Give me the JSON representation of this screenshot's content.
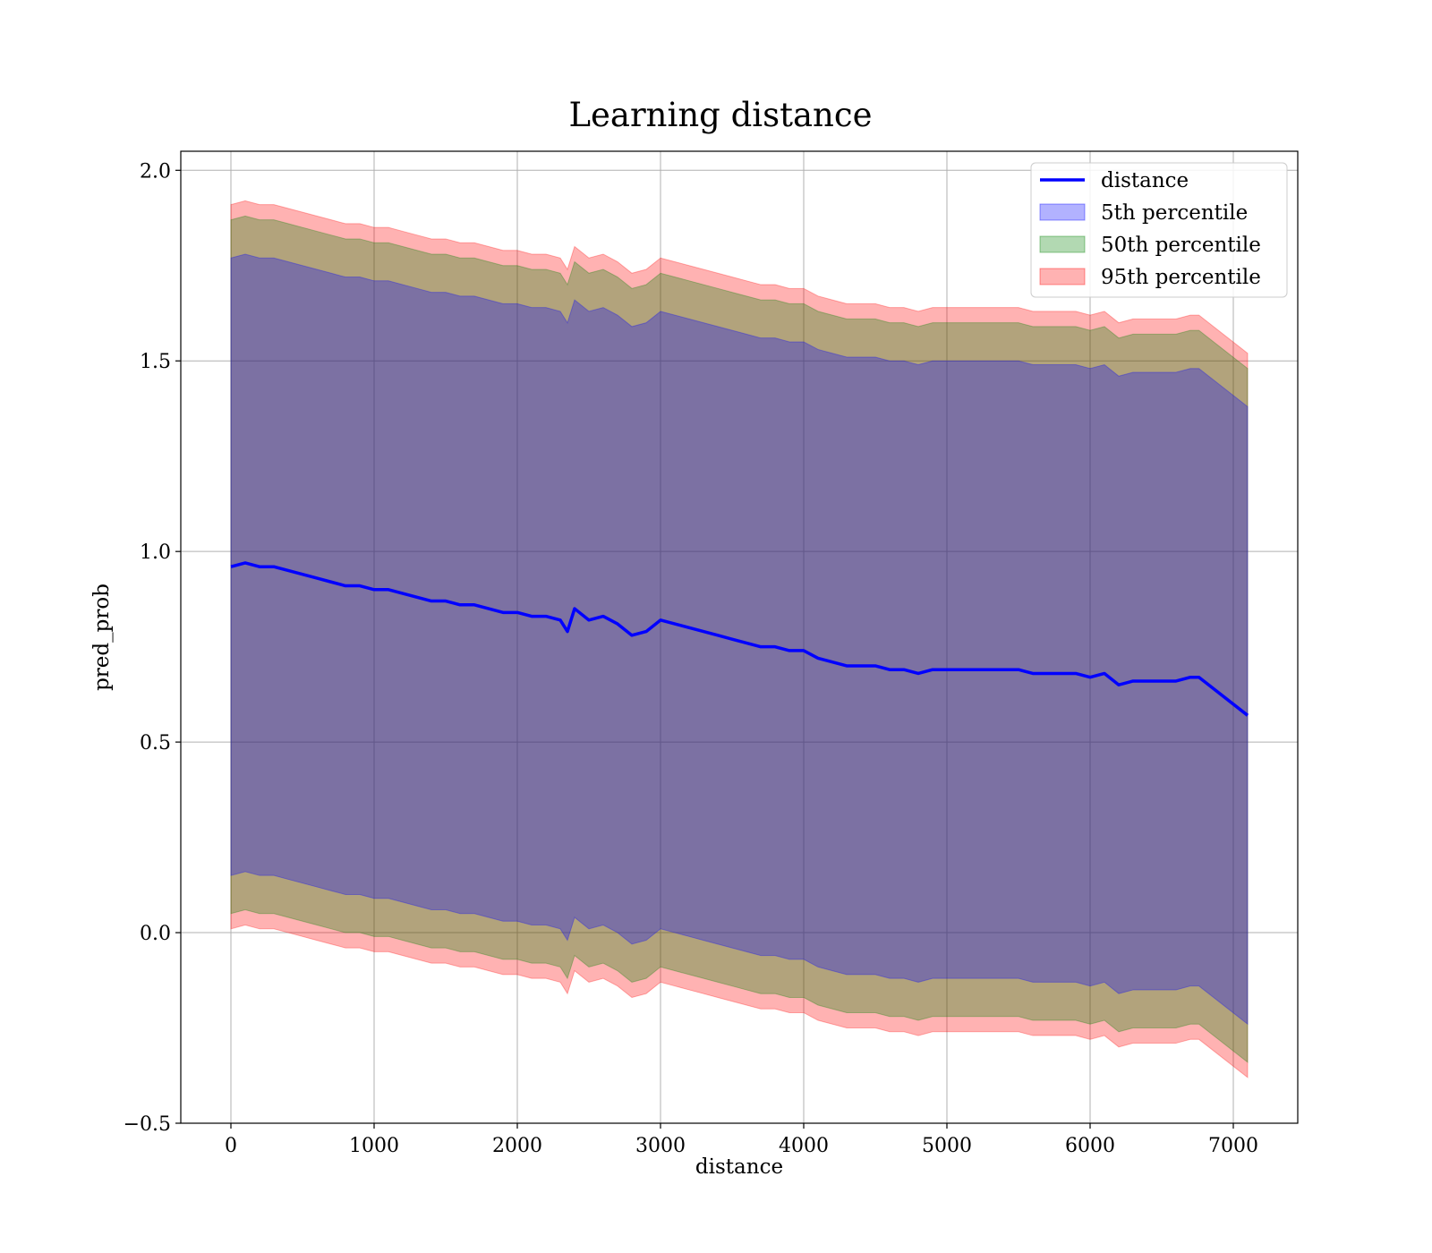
{
  "chart_data": {
    "type": "line",
    "title": "Learning distance",
    "xlabel": "distance",
    "ylabel": "pred_prob",
    "xlim": [
      -350,
      7450
    ],
    "ylim": [
      -0.5,
      2.05
    ],
    "xticks": [
      0,
      1000,
      2000,
      3000,
      4000,
      5000,
      6000,
      7000
    ],
    "yticks": [
      -0.5,
      0.0,
      0.5,
      1.0,
      1.5,
      2.0
    ],
    "ytick_labels": [
      "−0.5",
      "0.0",
      "0.5",
      "1.0",
      "1.5",
      "2.0"
    ],
    "grid": true,
    "legend_position": "top-right",
    "x": [
      0,
      100,
      200,
      300,
      400,
      500,
      600,
      700,
      800,
      900,
      1000,
      1100,
      1200,
      1300,
      1400,
      1500,
      1600,
      1700,
      1800,
      1900,
      2000,
      2100,
      2200,
      2300,
      2350,
      2400,
      2500,
      2600,
      2700,
      2800,
      2900,
      3000,
      3100,
      3200,
      3300,
      3400,
      3500,
      3600,
      3700,
      3800,
      3900,
      4000,
      4100,
      4200,
      4300,
      4400,
      4500,
      4600,
      4700,
      4800,
      4900,
      5000,
      5100,
      5200,
      5300,
      5400,
      5500,
      5600,
      5700,
      5800,
      5900,
      6000,
      6100,
      6200,
      6300,
      6400,
      6500,
      6600,
      6700,
      6760,
      7100
    ],
    "series": [
      {
        "name": "distance",
        "kind": "line",
        "color": "#0000ff",
        "values": [
          0.96,
          0.97,
          0.96,
          0.96,
          0.95,
          0.94,
          0.93,
          0.92,
          0.91,
          0.91,
          0.9,
          0.9,
          0.89,
          0.88,
          0.87,
          0.87,
          0.86,
          0.86,
          0.85,
          0.84,
          0.84,
          0.83,
          0.83,
          0.82,
          0.79,
          0.85,
          0.82,
          0.83,
          0.81,
          0.78,
          0.79,
          0.82,
          0.81,
          0.8,
          0.79,
          0.78,
          0.77,
          0.76,
          0.75,
          0.75,
          0.74,
          0.74,
          0.72,
          0.71,
          0.7,
          0.7,
          0.7,
          0.69,
          0.69,
          0.68,
          0.69,
          0.69,
          0.69,
          0.69,
          0.69,
          0.69,
          0.69,
          0.68,
          0.68,
          0.68,
          0.68,
          0.67,
          0.68,
          0.65,
          0.66,
          0.66,
          0.66,
          0.66,
          0.67,
          0.67,
          0.57
        ]
      },
      {
        "name": "5th percentile",
        "kind": "band",
        "color": "#0000ff",
        "opacity": 0.3,
        "lower": [
          0.15,
          0.16,
          0.15,
          0.15,
          0.14,
          0.13,
          0.12,
          0.11,
          0.1,
          0.1,
          0.09,
          0.09,
          0.08,
          0.07,
          0.06,
          0.06,
          0.05,
          0.05,
          0.04,
          0.03,
          0.03,
          0.02,
          0.02,
          0.01,
          -0.02,
          0.04,
          0.01,
          0.02,
          0.0,
          -0.03,
          -0.02,
          0.01,
          0.0,
          -0.01,
          -0.02,
          -0.03,
          -0.04,
          -0.05,
          -0.06,
          -0.06,
          -0.07,
          -0.07,
          -0.09,
          -0.1,
          -0.11,
          -0.11,
          -0.11,
          -0.12,
          -0.12,
          -0.13,
          -0.12,
          -0.12,
          -0.12,
          -0.12,
          -0.12,
          -0.12,
          -0.12,
          -0.13,
          -0.13,
          -0.13,
          -0.13,
          -0.14,
          -0.13,
          -0.16,
          -0.15,
          -0.15,
          -0.15,
          -0.15,
          -0.14,
          -0.14,
          -0.24
        ],
        "upper": [
          1.77,
          1.78,
          1.77,
          1.77,
          1.76,
          1.75,
          1.74,
          1.73,
          1.72,
          1.72,
          1.71,
          1.71,
          1.7,
          1.69,
          1.68,
          1.68,
          1.67,
          1.67,
          1.66,
          1.65,
          1.65,
          1.64,
          1.64,
          1.63,
          1.6,
          1.66,
          1.63,
          1.64,
          1.62,
          1.59,
          1.6,
          1.63,
          1.62,
          1.61,
          1.6,
          1.59,
          1.58,
          1.57,
          1.56,
          1.56,
          1.55,
          1.55,
          1.53,
          1.52,
          1.51,
          1.51,
          1.51,
          1.5,
          1.5,
          1.49,
          1.5,
          1.5,
          1.5,
          1.5,
          1.5,
          1.5,
          1.5,
          1.49,
          1.49,
          1.49,
          1.49,
          1.48,
          1.49,
          1.46,
          1.47,
          1.47,
          1.47,
          1.47,
          1.48,
          1.48,
          1.38
        ]
      },
      {
        "name": "50th percentile",
        "kind": "band",
        "color": "#008000",
        "opacity": 0.3,
        "lower": [
          0.05,
          0.06,
          0.05,
          0.05,
          0.04,
          0.03,
          0.02,
          0.01,
          0.0,
          0.0,
          -0.01,
          -0.01,
          -0.02,
          -0.03,
          -0.04,
          -0.04,
          -0.05,
          -0.05,
          -0.06,
          -0.07,
          -0.07,
          -0.08,
          -0.08,
          -0.09,
          -0.12,
          -0.06,
          -0.09,
          -0.08,
          -0.1,
          -0.13,
          -0.12,
          -0.09,
          -0.1,
          -0.11,
          -0.12,
          -0.13,
          -0.14,
          -0.15,
          -0.16,
          -0.16,
          -0.17,
          -0.17,
          -0.19,
          -0.2,
          -0.21,
          -0.21,
          -0.21,
          -0.22,
          -0.22,
          -0.23,
          -0.22,
          -0.22,
          -0.22,
          -0.22,
          -0.22,
          -0.22,
          -0.22,
          -0.23,
          -0.23,
          -0.23,
          -0.23,
          -0.24,
          -0.23,
          -0.26,
          -0.25,
          -0.25,
          -0.25,
          -0.25,
          -0.24,
          -0.24,
          -0.34
        ],
        "upper": [
          1.87,
          1.88,
          1.87,
          1.87,
          1.86,
          1.85,
          1.84,
          1.83,
          1.82,
          1.82,
          1.81,
          1.81,
          1.8,
          1.79,
          1.78,
          1.78,
          1.77,
          1.77,
          1.76,
          1.75,
          1.75,
          1.74,
          1.74,
          1.73,
          1.7,
          1.76,
          1.73,
          1.74,
          1.72,
          1.69,
          1.7,
          1.73,
          1.72,
          1.71,
          1.7,
          1.69,
          1.68,
          1.67,
          1.66,
          1.66,
          1.65,
          1.65,
          1.63,
          1.62,
          1.61,
          1.61,
          1.61,
          1.6,
          1.6,
          1.59,
          1.6,
          1.6,
          1.6,
          1.6,
          1.6,
          1.6,
          1.6,
          1.59,
          1.59,
          1.59,
          1.59,
          1.58,
          1.59,
          1.56,
          1.57,
          1.57,
          1.57,
          1.57,
          1.58,
          1.58,
          1.48
        ]
      },
      {
        "name": "95th percentile",
        "kind": "band",
        "color": "#ff0000",
        "opacity": 0.3,
        "lower": [
          0.01,
          0.02,
          0.01,
          0.01,
          0.0,
          -0.01,
          -0.02,
          -0.03,
          -0.04,
          -0.04,
          -0.05,
          -0.05,
          -0.06,
          -0.07,
          -0.08,
          -0.08,
          -0.09,
          -0.09,
          -0.1,
          -0.11,
          -0.11,
          -0.12,
          -0.12,
          -0.13,
          -0.16,
          -0.1,
          -0.13,
          -0.12,
          -0.14,
          -0.17,
          -0.16,
          -0.13,
          -0.14,
          -0.15,
          -0.16,
          -0.17,
          -0.18,
          -0.19,
          -0.2,
          -0.2,
          -0.21,
          -0.21,
          -0.23,
          -0.24,
          -0.25,
          -0.25,
          -0.25,
          -0.26,
          -0.26,
          -0.27,
          -0.26,
          -0.26,
          -0.26,
          -0.26,
          -0.26,
          -0.26,
          -0.26,
          -0.27,
          -0.27,
          -0.27,
          -0.27,
          -0.28,
          -0.27,
          -0.3,
          -0.29,
          -0.29,
          -0.29,
          -0.29,
          -0.28,
          -0.28,
          -0.38
        ],
        "upper": [
          1.91,
          1.92,
          1.91,
          1.91,
          1.9,
          1.89,
          1.88,
          1.87,
          1.86,
          1.86,
          1.85,
          1.85,
          1.84,
          1.83,
          1.82,
          1.82,
          1.81,
          1.81,
          1.8,
          1.79,
          1.79,
          1.78,
          1.78,
          1.77,
          1.74,
          1.8,
          1.77,
          1.78,
          1.76,
          1.73,
          1.74,
          1.77,
          1.76,
          1.75,
          1.74,
          1.73,
          1.72,
          1.71,
          1.7,
          1.7,
          1.69,
          1.69,
          1.67,
          1.66,
          1.65,
          1.65,
          1.65,
          1.64,
          1.64,
          1.63,
          1.64,
          1.64,
          1.64,
          1.64,
          1.64,
          1.64,
          1.64,
          1.63,
          1.63,
          1.63,
          1.63,
          1.62,
          1.63,
          1.6,
          1.61,
          1.61,
          1.61,
          1.61,
          1.62,
          1.62,
          1.52
        ]
      }
    ]
  }
}
